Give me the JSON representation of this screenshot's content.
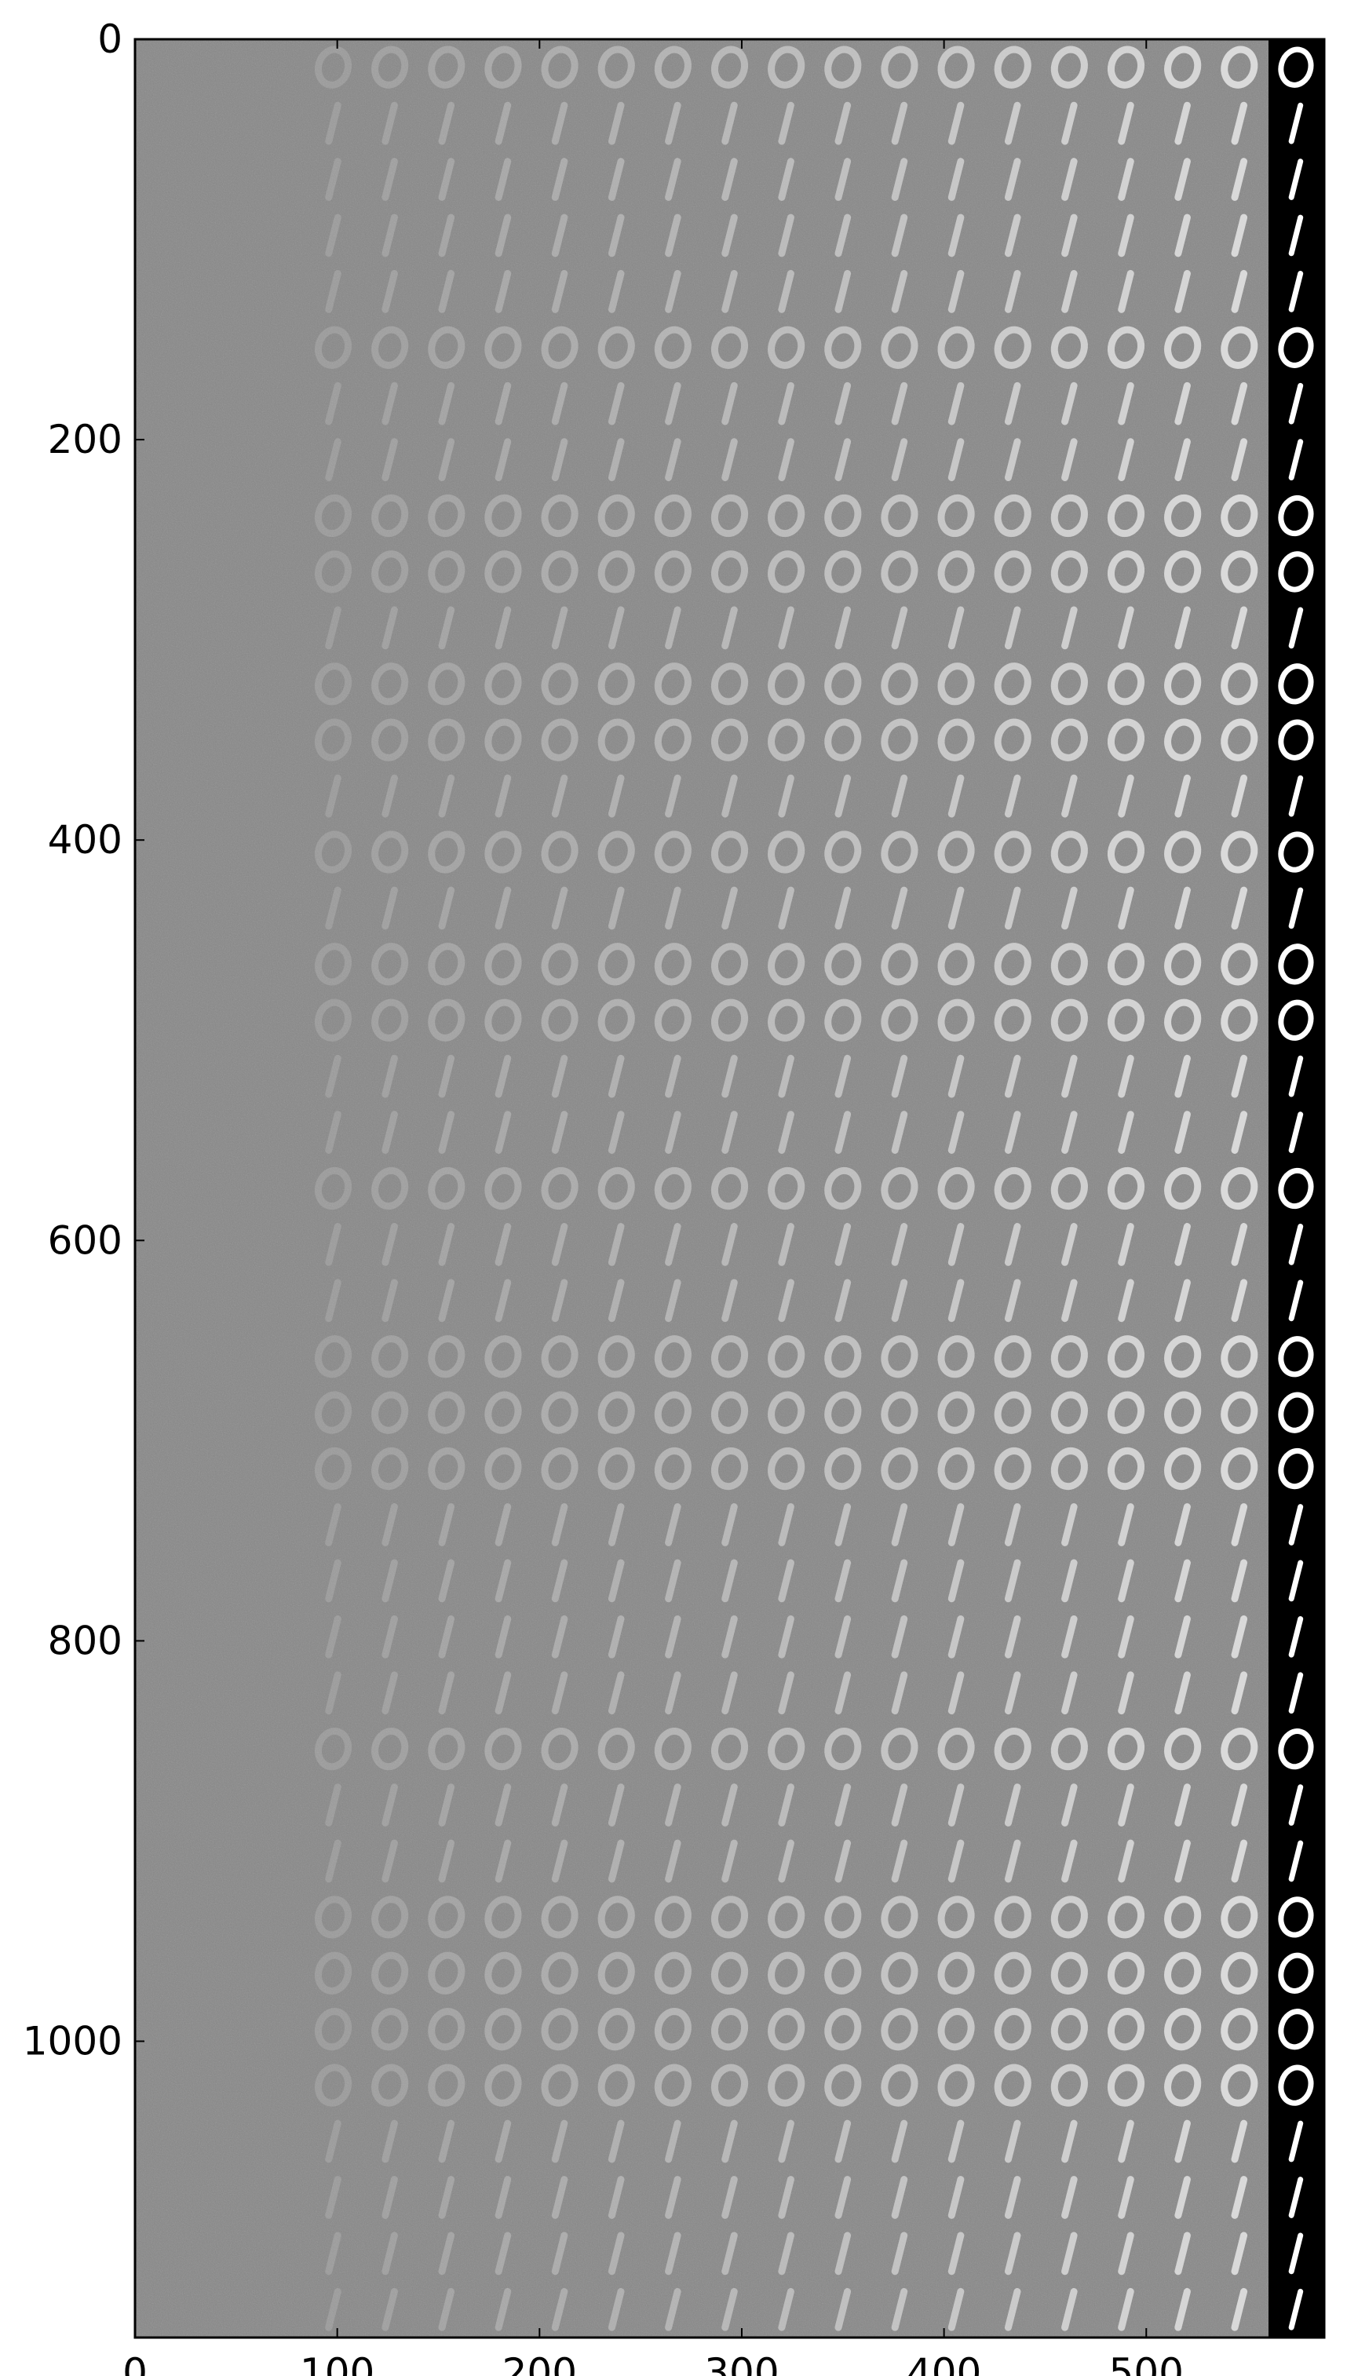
{
  "figure": {
    "x_axis": {
      "range": [
        0,
        588
      ],
      "ticks": [
        0,
        100,
        200,
        300,
        400,
        500
      ],
      "tick_labels": [
        "0",
        "100",
        "200",
        "300",
        "400",
        "500"
      ]
    },
    "y_axis": {
      "range": [
        0,
        1148
      ],
      "inverted": true,
      "ticks": [
        0,
        200,
        400,
        600,
        800,
        1000
      ],
      "tick_labels": [
        "0",
        "200",
        "400",
        "600",
        "800",
        "1000"
      ]
    },
    "image_grid": {
      "columns": 21,
      "rows": 41,
      "cell_size": 28,
      "final_column_background": "#000000",
      "noise_gray": "#8a8a8a",
      "digit_white": "#ffffff",
      "row_digits": [
        0,
        1,
        1,
        1,
        1,
        0,
        1,
        1,
        0,
        0,
        1,
        0,
        0,
        1,
        0,
        1,
        0,
        0,
        1,
        1,
        0,
        1,
        1,
        0,
        0,
        0,
        1,
        1,
        1,
        1,
        0,
        1,
        1,
        0,
        0,
        0,
        0,
        1,
        1,
        1,
        1
      ]
    }
  }
}
